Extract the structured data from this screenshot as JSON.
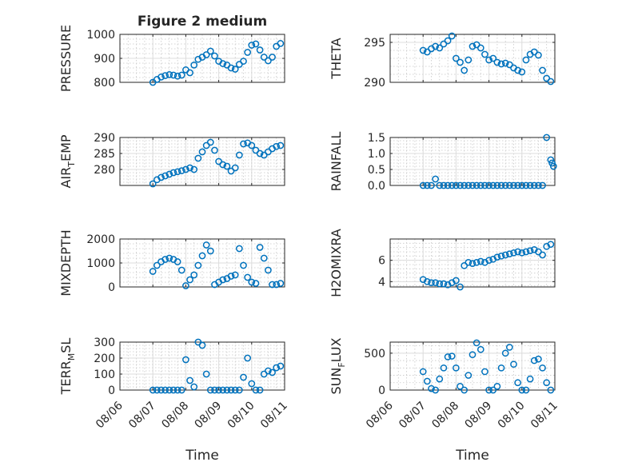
{
  "figure": {
    "title": "Figure 2 medium"
  },
  "colors": {
    "marker": "#0072BD",
    "axis": "#262626",
    "background": "#ffffff"
  },
  "chart_data": [
    {
      "id": "pressure",
      "type": "scatter",
      "title": "Figure 2 medium",
      "ylabel": "PRESSURE",
      "xlabel": "",
      "xlim": [
        "08/06",
        "08/11"
      ],
      "ylim": [
        800,
        1000
      ],
      "yticks": [
        800,
        900,
        1000
      ],
      "grid": true,
      "minor_grid": true,
      "x": [
        "08/07 00:00",
        "08/07 03:00",
        "08/07 06:00",
        "08/07 09:00",
        "08/07 12:00",
        "08/07 15:00",
        "08/07 18:00",
        "08/07 21:00",
        "08/08 00:00",
        "08/08 03:00",
        "08/08 06:00",
        "08/08 09:00",
        "08/08 12:00",
        "08/08 15:00",
        "08/08 18:00",
        "08/08 21:00",
        "08/09 00:00",
        "08/09 03:00",
        "08/09 06:00",
        "08/09 09:00",
        "08/09 12:00",
        "08/09 15:00",
        "08/09 18:00",
        "08/09 21:00",
        "08/10 00:00",
        "08/10 03:00",
        "08/10 06:00",
        "08/10 09:00",
        "08/10 12:00",
        "08/10 15:00",
        "08/10 18:00",
        "08/10 21:00"
      ],
      "y": [
        800,
        812,
        822,
        828,
        832,
        830,
        826,
        830,
        852,
        840,
        872,
        896,
        905,
        915,
        930,
        910,
        888,
        878,
        872,
        860,
        855,
        875,
        888,
        925,
        955,
        960,
        935,
        905,
        890,
        905,
        950,
        962
      ]
    },
    {
      "id": "theta",
      "type": "scatter",
      "ylabel": "THETA",
      "xlabel": "",
      "xlim": [
        "08/06",
        "08/11"
      ],
      "ylim": [
        290,
        296
      ],
      "yticks": [
        290,
        295
      ],
      "grid": true,
      "minor_grid": true,
      "x": [
        "08/07 00:00",
        "08/07 03:00",
        "08/07 06:00",
        "08/07 09:00",
        "08/07 12:00",
        "08/07 15:00",
        "08/07 18:00",
        "08/07 21:00",
        "08/08 00:00",
        "08/08 03:00",
        "08/08 06:00",
        "08/08 09:00",
        "08/08 12:00",
        "08/08 15:00",
        "08/08 18:00",
        "08/08 21:00",
        "08/09 00:00",
        "08/09 03:00",
        "08/09 06:00",
        "08/09 09:00",
        "08/09 12:00",
        "08/09 15:00",
        "08/09 18:00",
        "08/09 21:00",
        "08/10 00:00",
        "08/10 03:00",
        "08/10 06:00",
        "08/10 09:00",
        "08/10 12:00",
        "08/10 15:00",
        "08/10 18:00",
        "08/10 21:00"
      ],
      "y": [
        294.0,
        293.8,
        294.2,
        294.5,
        294.3,
        294.8,
        295.2,
        295.8,
        293.0,
        292.5,
        291.5,
        292.8,
        294.5,
        294.7,
        294.3,
        293.5,
        292.8,
        293.0,
        292.5,
        292.3,
        292.4,
        292.2,
        291.8,
        291.5,
        291.3,
        292.8,
        293.5,
        293.8,
        293.4,
        291.5,
        290.5,
        290.1
      ]
    },
    {
      "id": "airtemp",
      "type": "scatter",
      "ylabel": "AIR_TEMP",
      "ylabel_main": "AIR",
      "ylabel_sub": "T",
      "ylabel_tail": "EMP",
      "xlabel": "",
      "xlim": [
        "08/06",
        "08/11"
      ],
      "ylim": [
        275,
        290
      ],
      "yticks": [
        280,
        285,
        290
      ],
      "grid": true,
      "minor_grid": true,
      "x": [
        "08/07 00:00",
        "08/07 03:00",
        "08/07 06:00",
        "08/07 09:00",
        "08/07 12:00",
        "08/07 15:00",
        "08/07 18:00",
        "08/07 21:00",
        "08/08 00:00",
        "08/08 03:00",
        "08/08 06:00",
        "08/08 09:00",
        "08/08 12:00",
        "08/08 15:00",
        "08/08 18:00",
        "08/08 21:00",
        "08/09 00:00",
        "08/09 03:00",
        "08/09 06:00",
        "08/09 09:00",
        "08/09 12:00",
        "08/09 15:00",
        "08/09 18:00",
        "08/09 21:00",
        "08/10 00:00",
        "08/10 03:00",
        "08/10 06:00",
        "08/10 09:00",
        "08/10 12:00",
        "08/10 15:00",
        "08/10 18:00",
        "08/10 21:00"
      ],
      "y": [
        275.5,
        276.8,
        277.5,
        278.0,
        278.5,
        279.0,
        279.3,
        279.6,
        280.0,
        280.5,
        280.0,
        283.5,
        285.5,
        287.5,
        288.5,
        286.0,
        282.5,
        281.5,
        281.0,
        279.5,
        280.5,
        284.5,
        288.0,
        288.3,
        287.5,
        286.0,
        285.0,
        284.5,
        285.5,
        286.5,
        287.2,
        287.5
      ]
    },
    {
      "id": "rainfall",
      "type": "scatter",
      "ylabel": "RAINFALL",
      "xlabel": "",
      "xlim": [
        "08/06",
        "08/11"
      ],
      "ylim": [
        0,
        1.5
      ],
      "yticks": [
        0,
        0.5,
        1,
        1.5
      ],
      "grid": true,
      "minor_grid": true,
      "x": [
        "08/07 00:00",
        "08/07 03:00",
        "08/07 06:00",
        "08/07 09:00",
        "08/07 12:00",
        "08/07 15:00",
        "08/07 18:00",
        "08/07 21:00",
        "08/08 00:00",
        "08/08 03:00",
        "08/08 06:00",
        "08/08 09:00",
        "08/08 12:00",
        "08/08 15:00",
        "08/08 18:00",
        "08/08 21:00",
        "08/09 00:00",
        "08/09 03:00",
        "08/09 06:00",
        "08/09 09:00",
        "08/09 12:00",
        "08/09 15:00",
        "08/09 18:00",
        "08/09 21:00",
        "08/10 00:00",
        "08/10 03:00",
        "08/10 06:00",
        "08/10 09:00",
        "08/10 12:00",
        "08/10 15:00",
        "08/10 18:00",
        "08/10 21:00",
        "08/10 22:00",
        "08/10 23:00"
      ],
      "y": [
        0,
        0,
        0,
        0.2,
        0,
        0,
        0,
        0,
        0,
        0,
        0,
        0,
        0,
        0,
        0,
        0,
        0,
        0,
        0,
        0,
        0,
        0,
        0,
        0,
        0,
        0,
        0,
        0,
        0,
        0,
        1.5,
        0.8,
        0.7,
        0.6
      ]
    },
    {
      "id": "mixdepth",
      "type": "scatter",
      "ylabel": "MIXDEPTH",
      "xlabel": "",
      "xlim": [
        "08/06",
        "08/11"
      ],
      "ylim": [
        0,
        2000
      ],
      "yticks": [
        0,
        1000,
        2000
      ],
      "grid": true,
      "minor_grid": true,
      "x": [
        "08/07 00:00",
        "08/07 03:00",
        "08/07 06:00",
        "08/07 09:00",
        "08/07 12:00",
        "08/07 15:00",
        "08/07 18:00",
        "08/07 21:00",
        "08/08 00:00",
        "08/08 03:00",
        "08/08 06:00",
        "08/08 09:00",
        "08/08 12:00",
        "08/08 15:00",
        "08/08 18:00",
        "08/08 21:00",
        "08/09 00:00",
        "08/09 03:00",
        "08/09 06:00",
        "08/09 09:00",
        "08/09 12:00",
        "08/09 15:00",
        "08/09 18:00",
        "08/09 21:00",
        "08/10 00:00",
        "08/10 03:00",
        "08/10 06:00",
        "08/10 09:00",
        "08/10 12:00",
        "08/10 15:00",
        "08/10 18:00",
        "08/10 21:00"
      ],
      "y": [
        650,
        900,
        1050,
        1150,
        1200,
        1150,
        1050,
        700,
        50,
        300,
        500,
        900,
        1300,
        1750,
        1500,
        100,
        200,
        300,
        350,
        450,
        500,
        1600,
        900,
        400,
        200,
        150,
        1650,
        1200,
        700,
        100,
        100,
        150
      ]
    },
    {
      "id": "h2omixra",
      "type": "scatter",
      "ylabel": "H2OMIXRA",
      "xlabel": "",
      "xlim": [
        "08/06",
        "08/11"
      ],
      "ylim": [
        3.5,
        8
      ],
      "yticks": [
        4,
        6
      ],
      "grid": true,
      "minor_grid": true,
      "x": [
        "08/07 00:00",
        "08/07 03:00",
        "08/07 06:00",
        "08/07 09:00",
        "08/07 12:00",
        "08/07 15:00",
        "08/07 18:00",
        "08/07 21:00",
        "08/08 00:00",
        "08/08 03:00",
        "08/08 06:00",
        "08/08 09:00",
        "08/08 12:00",
        "08/08 15:00",
        "08/08 18:00",
        "08/08 21:00",
        "08/09 00:00",
        "08/09 03:00",
        "08/09 06:00",
        "08/09 09:00",
        "08/09 12:00",
        "08/09 15:00",
        "08/09 18:00",
        "08/09 21:00",
        "08/10 00:00",
        "08/10 03:00",
        "08/10 06:00",
        "08/10 09:00",
        "08/10 12:00",
        "08/10 15:00",
        "08/10 18:00",
        "08/10 21:00"
      ],
      "y": [
        4.2,
        4.0,
        3.9,
        3.9,
        3.8,
        3.8,
        3.7,
        3.9,
        4.1,
        3.5,
        5.5,
        5.8,
        5.7,
        5.8,
        5.9,
        5.8,
        6.0,
        6.1,
        6.3,
        6.4,
        6.5,
        6.6,
        6.7,
        6.8,
        6.7,
        6.8,
        6.9,
        7.0,
        6.8,
        6.5,
        7.3,
        7.5
      ]
    },
    {
      "id": "terrmsl",
      "type": "scatter",
      "ylabel": "TERR_MSL",
      "ylabel_main": "TERR",
      "ylabel_sub": "M",
      "ylabel_tail": "SL",
      "xlabel": "Time",
      "xlim": [
        "08/06",
        "08/11"
      ],
      "ylim": [
        0,
        300
      ],
      "yticks": [
        0,
        100,
        200,
        300
      ],
      "grid": true,
      "minor_grid": true,
      "x": [
        "08/07 00:00",
        "08/07 03:00",
        "08/07 06:00",
        "08/07 09:00",
        "08/07 12:00",
        "08/07 15:00",
        "08/07 18:00",
        "08/07 21:00",
        "08/08 00:00",
        "08/08 03:00",
        "08/08 06:00",
        "08/08 09:00",
        "08/08 12:00",
        "08/08 15:00",
        "08/08 18:00",
        "08/08 21:00",
        "08/09 00:00",
        "08/09 03:00",
        "08/09 06:00",
        "08/09 09:00",
        "08/09 12:00",
        "08/09 15:00",
        "08/09 18:00",
        "08/09 21:00",
        "08/10 00:00",
        "08/10 03:00",
        "08/10 06:00",
        "08/10 09:00",
        "08/10 12:00",
        "08/10 15:00",
        "08/10 18:00",
        "08/10 21:00"
      ],
      "y": [
        0,
        0,
        0,
        0,
        0,
        0,
        0,
        0,
        190,
        60,
        20,
        300,
        280,
        100,
        0,
        0,
        0,
        0,
        0,
        0,
        0,
        0,
        80,
        200,
        40,
        0,
        0,
        100,
        120,
        110,
        140,
        150
      ]
    },
    {
      "id": "sunflux",
      "type": "scatter",
      "ylabel": "SUN_FLUX",
      "ylabel_main": "SUN",
      "ylabel_sub": "F",
      "ylabel_tail": "LUX",
      "xlabel": "Time",
      "xlim": [
        "08/06",
        "08/11"
      ],
      "ylim": [
        0,
        650
      ],
      "yticks": [
        0,
        500
      ],
      "grid": true,
      "minor_grid": true,
      "x": [
        "08/07 00:00",
        "08/07 03:00",
        "08/07 06:00",
        "08/07 09:00",
        "08/07 12:00",
        "08/07 15:00",
        "08/07 18:00",
        "08/07 21:00",
        "08/08 00:00",
        "08/08 03:00",
        "08/08 06:00",
        "08/08 09:00",
        "08/08 12:00",
        "08/08 15:00",
        "08/08 18:00",
        "08/08 21:00",
        "08/09 00:00",
        "08/09 03:00",
        "08/09 06:00",
        "08/09 09:00",
        "08/09 12:00",
        "08/09 15:00",
        "08/09 18:00",
        "08/09 21:00",
        "08/10 00:00",
        "08/10 03:00",
        "08/10 06:00",
        "08/10 09:00",
        "08/10 12:00",
        "08/10 15:00",
        "08/10 18:00",
        "08/10 21:00"
      ],
      "y": [
        250,
        120,
        20,
        0,
        150,
        300,
        450,
        460,
        300,
        50,
        0,
        200,
        480,
        640,
        550,
        250,
        0,
        0,
        50,
        300,
        500,
        580,
        350,
        100,
        0,
        0,
        150,
        400,
        420,
        300,
        100,
        0
      ]
    }
  ]
}
